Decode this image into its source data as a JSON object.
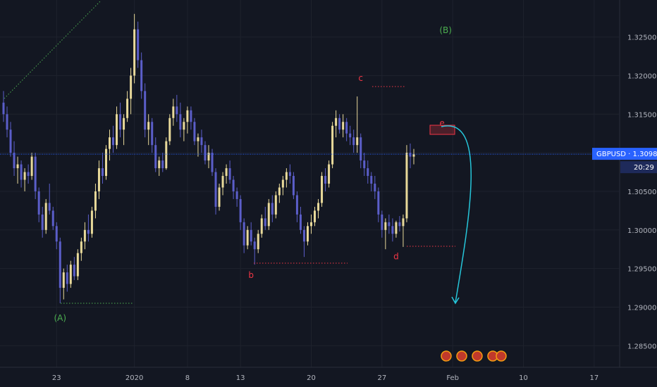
{
  "chart_data": {
    "type": "candlestick",
    "symbol": "GBPUSD",
    "last_price_label": "GBPUSD · 1.30982",
    "countdown": "20:29",
    "last_price": 1.30982,
    "ylim": [
      1.2822,
      1.3298
    ],
    "y_ticks": [
      "1.32500",
      "1.32000",
      "1.31500",
      "1.31000",
      "1.30500",
      "1.30000",
      "1.29500",
      "1.29000",
      "1.28500"
    ],
    "y_tick_values": [
      1.325,
      1.32,
      1.315,
      1.31,
      1.305,
      1.3,
      1.295,
      1.29,
      1.285
    ],
    "x_ticks": [
      "23",
      "2020",
      "8",
      "13",
      "20",
      "27",
      "Feb",
      "10",
      "17"
    ],
    "x_tick_index": [
      15,
      37,
      52,
      67,
      87,
      107,
      127,
      147,
      167
    ],
    "x_range": [
      0,
      175
    ],
    "candles": [
      [
        1.3165,
        1.318,
        1.314,
        1.315
      ],
      [
        1.315,
        1.316,
        1.312,
        1.313
      ],
      [
        1.313,
        1.314,
        1.3095,
        1.31
      ],
      [
        1.31,
        1.3115,
        1.307,
        1.308
      ],
      [
        1.308,
        1.3095,
        1.306,
        1.3085
      ],
      [
        1.3085,
        1.309,
        1.3055,
        1.3065
      ],
      [
        1.3065,
        1.308,
        1.305,
        1.3075
      ],
      [
        1.3075,
        1.3085,
        1.306,
        1.307
      ],
      [
        1.307,
        1.31,
        1.3065,
        1.3095
      ],
      [
        1.3095,
        1.31,
        1.304,
        1.305
      ],
      [
        1.305,
        1.3055,
        1.301,
        1.302
      ],
      [
        1.302,
        1.303,
        1.299,
        1.3
      ],
      [
        1.3,
        1.304,
        1.2995,
        1.3035
      ],
      [
        1.3035,
        1.306,
        1.302,
        1.3025
      ],
      [
        1.3025,
        1.303,
        1.3,
        1.3005
      ],
      [
        1.3005,
        1.301,
        1.2975,
        1.2985
      ],
      [
        1.2985,
        1.299,
        1.2905,
        1.2925
      ],
      [
        1.2925,
        1.295,
        1.291,
        1.2945
      ],
      [
        1.2945,
        1.2955,
        1.292,
        1.293
      ],
      [
        1.293,
        1.296,
        1.2925,
        1.2955
      ],
      [
        1.2955,
        1.2965,
        1.2935,
        1.294
      ],
      [
        1.294,
        1.2975,
        1.2935,
        1.297
      ],
      [
        1.297,
        1.299,
        1.296,
        1.2985
      ],
      [
        1.2985,
        1.301,
        1.2975,
        1.3
      ],
      [
        1.3,
        1.302,
        1.2985,
        1.2995
      ],
      [
        1.2995,
        1.303,
        1.299,
        1.3025
      ],
      [
        1.3025,
        1.306,
        1.3015,
        1.305
      ],
      [
        1.305,
        1.309,
        1.304,
        1.308
      ],
      [
        1.308,
        1.31,
        1.306,
        1.307
      ],
      [
        1.307,
        1.311,
        1.3065,
        1.3105
      ],
      [
        1.3105,
        1.313,
        1.309,
        1.312
      ],
      [
        1.312,
        1.3135,
        1.31,
        1.311
      ],
      [
        1.311,
        1.316,
        1.3105,
        1.315
      ],
      [
        1.315,
        1.3165,
        1.312,
        1.313
      ],
      [
        1.313,
        1.315,
        1.311,
        1.3145
      ],
      [
        1.3145,
        1.318,
        1.314,
        1.317
      ],
      [
        1.317,
        1.321,
        1.315,
        1.32
      ],
      [
        1.32,
        1.328,
        1.319,
        1.326
      ],
      [
        1.326,
        1.327,
        1.321,
        1.322
      ],
      [
        1.322,
        1.323,
        1.317,
        1.318
      ],
      [
        1.318,
        1.319,
        1.312,
        1.313
      ],
      [
        1.313,
        1.315,
        1.311,
        1.314
      ],
      [
        1.314,
        1.3145,
        1.31,
        1.311
      ],
      [
        1.311,
        1.312,
        1.3075,
        1.308
      ],
      [
        1.308,
        1.3095,
        1.307,
        1.309
      ],
      [
        1.309,
        1.31,
        1.3075,
        1.308
      ],
      [
        1.308,
        1.312,
        1.3078,
        1.3115
      ],
      [
        1.3115,
        1.315,
        1.311,
        1.3145
      ],
      [
        1.3145,
        1.317,
        1.3135,
        1.316
      ],
      [
        1.316,
        1.3175,
        1.314,
        1.315
      ],
      [
        1.315,
        1.3165,
        1.312,
        1.313
      ],
      [
        1.313,
        1.3145,
        1.3115,
        1.314
      ],
      [
        1.314,
        1.316,
        1.3125,
        1.3155
      ],
      [
        1.3155,
        1.316,
        1.313,
        1.314
      ],
      [
        1.314,
        1.3145,
        1.311,
        1.3115
      ],
      [
        1.3115,
        1.3125,
        1.3095,
        1.312
      ],
      [
        1.312,
        1.313,
        1.31,
        1.311
      ],
      [
        1.311,
        1.3115,
        1.3085,
        1.309
      ],
      [
        1.309,
        1.311,
        1.308,
        1.31
      ],
      [
        1.31,
        1.3105,
        1.307,
        1.3075
      ],
      [
        1.3075,
        1.308,
        1.302,
        1.303
      ],
      [
        1.303,
        1.306,
        1.3025,
        1.3055
      ],
      [
        1.3055,
        1.3075,
        1.3045,
        1.307
      ],
      [
        1.307,
        1.3085,
        1.306,
        1.308
      ],
      [
        1.308,
        1.309,
        1.306,
        1.3065
      ],
      [
        1.3065,
        1.307,
        1.304,
        1.305
      ],
      [
        1.305,
        1.3055,
        1.303,
        1.304
      ],
      [
        1.304,
        1.3045,
        1.3,
        1.301
      ],
      [
        1.301,
        1.3015,
        1.297,
        1.298
      ],
      [
        1.298,
        1.3005,
        1.2975,
        1.3
      ],
      [
        1.3,
        1.301,
        1.298,
        1.2985
      ],
      [
        1.2985,
        1.299,
        1.2955,
        1.2975
      ],
      [
        1.2975,
        1.3,
        1.297,
        1.2995
      ],
      [
        1.2995,
        1.302,
        1.299,
        1.3015
      ],
      [
        1.3015,
        1.303,
        1.3,
        1.3005
      ],
      [
        1.3005,
        1.304,
        1.3,
        1.3035
      ],
      [
        1.3035,
        1.3045,
        1.301,
        1.302
      ],
      [
        1.302,
        1.305,
        1.3015,
        1.3045
      ],
      [
        1.3045,
        1.306,
        1.3035,
        1.3055
      ],
      [
        1.3055,
        1.307,
        1.3045,
        1.3065
      ],
      [
        1.3065,
        1.308,
        1.3055,
        1.3075
      ],
      [
        1.3075,
        1.3085,
        1.306,
        1.307
      ],
      [
        1.307,
        1.3075,
        1.304,
        1.3045
      ],
      [
        1.3045,
        1.305,
        1.301,
        1.302
      ],
      [
        1.302,
        1.303,
        1.2995,
        1.3
      ],
      [
        1.3,
        1.3005,
        1.2965,
        1.2985
      ],
      [
        1.2985,
        1.301,
        1.298,
        1.3005
      ],
      [
        1.3005,
        1.302,
        1.2995,
        1.301
      ],
      [
        1.301,
        1.303,
        1.3005,
        1.3025
      ],
      [
        1.3025,
        1.304,
        1.3015,
        1.3035
      ],
      [
        1.3035,
        1.3075,
        1.303,
        1.307
      ],
      [
        1.307,
        1.308,
        1.305,
        1.306
      ],
      [
        1.306,
        1.309,
        1.3055,
        1.3085
      ],
      [
        1.3085,
        1.314,
        1.308,
        1.3135
      ],
      [
        1.3135,
        1.3155,
        1.312,
        1.3145
      ],
      [
        1.3145,
        1.315,
        1.3125,
        1.313
      ],
      [
        1.313,
        1.315,
        1.312,
        1.314
      ],
      [
        1.314,
        1.3145,
        1.3115,
        1.3125
      ],
      [
        1.3125,
        1.3135,
        1.311,
        1.312
      ],
      [
        1.312,
        1.313,
        1.31,
        1.311
      ],
      [
        1.311,
        1.3173,
        1.31,
        1.312
      ],
      [
        1.312,
        1.3125,
        1.308,
        1.309
      ],
      [
        1.309,
        1.31,
        1.307,
        1.308
      ],
      [
        1.308,
        1.309,
        1.306,
        1.307
      ],
      [
        1.307,
        1.3075,
        1.305,
        1.306
      ],
      [
        1.306,
        1.307,
        1.304,
        1.305
      ],
      [
        1.305,
        1.3055,
        1.301,
        1.302
      ],
      [
        1.302,
        1.3025,
        1.299,
        1.3
      ],
      [
        1.3,
        1.3015,
        1.2975,
        1.301
      ],
      [
        1.301,
        1.302,
        1.2995,
        1.3005
      ],
      [
        1.3005,
        1.3015,
        1.2985,
        1.2995
      ],
      [
        1.2995,
        1.3012,
        1.299,
        1.301
      ],
      [
        1.301,
        1.3018,
        1.2998,
        1.3005
      ],
      [
        1.3005,
        1.302,
        1.2978,
        1.3015
      ],
      [
        1.3015,
        1.311,
        1.301,
        1.31
      ],
      [
        1.31,
        1.3112,
        1.308,
        1.3095
      ],
      [
        1.3095,
        1.3105,
        1.3085,
        1.3098
      ]
    ],
    "waves": [
      {
        "label": "(A)",
        "x": 16,
        "y": 1.2882,
        "color": "#4caf50"
      },
      {
        "label": "(B)",
        "x": 125,
        "y": 1.3255,
        "color": "#4caf50"
      },
      {
        "label": "b",
        "x": 70,
        "y": 1.2938,
        "color": "#f23645"
      },
      {
        "label": "c",
        "x": 101,
        "y": 1.3193,
        "color": "#f23645"
      },
      {
        "label": "d",
        "x": 111,
        "y": 1.2962,
        "color": "#f23645"
      },
      {
        "label": "e",
        "x": 124,
        "y": 1.3135,
        "color": "#f23645"
      }
    ]
  }
}
